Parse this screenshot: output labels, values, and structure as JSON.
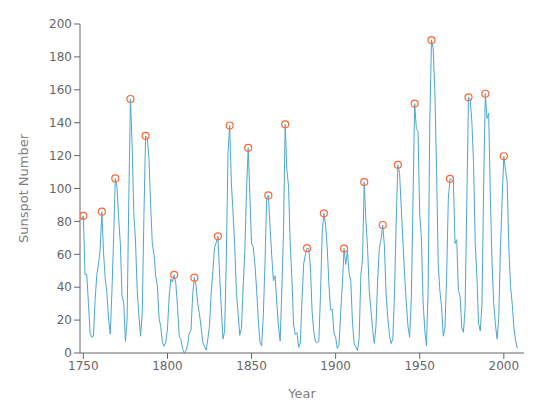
{
  "chart_data": {
    "type": "line",
    "xlabel": "Year",
    "ylabel": "Sunspot Number",
    "grid": false,
    "xlim": [
      1748,
      2012
    ],
    "ylim": [
      0,
      200
    ],
    "xticks": [
      1750,
      1800,
      1850,
      1900,
      1950,
      2000
    ],
    "yticks": [
      0,
      20,
      40,
      60,
      80,
      100,
      120,
      140,
      160,
      180,
      200
    ],
    "series": [
      {
        "type": "line",
        "color": "#4DA6D0",
        "x": [
          1749,
          1750,
          1751,
          1752,
          1753,
          1754,
          1755,
          1756,
          1757,
          1758,
          1759,
          1760,
          1761,
          1762,
          1763,
          1764,
          1765,
          1766,
          1767,
          1768,
          1769,
          1770,
          1771,
          1772,
          1773,
          1774,
          1775,
          1776,
          1777,
          1778,
          1779,
          1780,
          1781,
          1782,
          1783,
          1784,
          1785,
          1786,
          1787,
          1788,
          1789,
          1790,
          1791,
          1792,
          1793,
          1794,
          1795,
          1796,
          1797,
          1798,
          1799,
          1800,
          1801,
          1802,
          1803,
          1804,
          1805,
          1806,
          1807,
          1808,
          1809,
          1810,
          1811,
          1812,
          1813,
          1814,
          1815,
          1816,
          1817,
          1818,
          1819,
          1820,
          1821,
          1822,
          1823,
          1824,
          1825,
          1826,
          1827,
          1828,
          1829,
          1830,
          1831,
          1832,
          1833,
          1834,
          1835,
          1836,
          1837,
          1838,
          1839,
          1840,
          1841,
          1842,
          1843,
          1844,
          1845,
          1846,
          1847,
          1848,
          1849,
          1850,
          1851,
          1852,
          1853,
          1854,
          1855,
          1856,
          1857,
          1858,
          1859,
          1860,
          1861,
          1862,
          1863,
          1864,
          1865,
          1866,
          1867,
          1868,
          1869,
          1870,
          1871,
          1872,
          1873,
          1874,
          1875,
          1876,
          1877,
          1878,
          1879,
          1880,
          1881,
          1882,
          1883,
          1884,
          1885,
          1886,
          1887,
          1888,
          1889,
          1890,
          1891,
          1892,
          1893,
          1894,
          1895,
          1896,
          1897,
          1898,
          1899,
          1900,
          1901,
          1902,
          1903,
          1904,
          1905,
          1906,
          1907,
          1908,
          1909,
          1910,
          1911,
          1912,
          1913,
          1914,
          1915,
          1916,
          1917,
          1918,
          1919,
          1920,
          1921,
          1922,
          1923,
          1924,
          1925,
          1926,
          1927,
          1928,
          1929,
          1930,
          1931,
          1932,
          1933,
          1934,
          1935,
          1936,
          1937,
          1938,
          1939,
          1940,
          1941,
          1942,
          1943,
          1944,
          1945,
          1946,
          1947,
          1948,
          1949,
          1950,
          1951,
          1952,
          1953,
          1954,
          1955,
          1956,
          1957,
          1958,
          1959,
          1960,
          1961,
          1962,
          1963,
          1964,
          1965,
          1966,
          1967,
          1968,
          1969,
          1970,
          1971,
          1972,
          1973,
          1974,
          1975,
          1976,
          1977,
          1978,
          1979,
          1980,
          1981,
          1982,
          1983,
          1984,
          1985,
          1986,
          1987,
          1988,
          1989,
          1990,
          1991,
          1992,
          1993,
          1994,
          1995,
          1996,
          1997,
          1998,
          1999,
          2000,
          2001,
          2002,
          2003,
          2004,
          2005,
          2006,
          2007,
          2008
        ],
        "values": [
          80.9,
          83.4,
          47.7,
          47.8,
          30.7,
          12.2,
          9.6,
          10.2,
          32.4,
          47.6,
          54.0,
          62.9,
          85.9,
          61.2,
          45.1,
          36.4,
          20.9,
          11.4,
          37.8,
          69.8,
          106.1,
          100.8,
          81.6,
          66.5,
          34.8,
          30.6,
          7.0,
          19.8,
          92.5,
          154.4,
          125.9,
          84.8,
          68.1,
          38.5,
          22.8,
          10.2,
          24.1,
          82.9,
          132.0,
          130.9,
          118.1,
          89.9,
          66.6,
          60.0,
          46.9,
          41.0,
          21.3,
          16.0,
          6.4,
          4.1,
          6.8,
          14.5,
          34.0,
          45.0,
          43.1,
          47.5,
          42.2,
          28.1,
          10.1,
          8.1,
          2.5,
          0.0,
          1.4,
          5.0,
          12.2,
          13.9,
          35.4,
          45.8,
          41.1,
          30.1,
          23.9,
          15.6,
          6.6,
          4.0,
          1.8,
          8.5,
          16.6,
          36.3,
          49.6,
          64.2,
          67.0,
          70.9,
          47.8,
          27.5,
          8.5,
          13.2,
          56.9,
          121.5,
          138.3,
          103.2,
          85.7,
          64.6,
          36.7,
          24.2,
          10.7,
          15.0,
          40.1,
          61.5,
          98.5,
          124.7,
          96.3,
          66.6,
          64.5,
          54.1,
          39.0,
          20.6,
          6.7,
          4.3,
          22.7,
          54.8,
          93.8,
          95.8,
          77.2,
          59.1,
          44.0,
          47.0,
          30.5,
          16.3,
          7.3,
          37.6,
          74.0,
          139.0,
          111.2,
          101.6,
          66.2,
          44.7,
          17.0,
          11.3,
          12.4,
          3.4,
          6.0,
          32.3,
          54.3,
          59.7,
          63.7,
          63.5,
          52.2,
          25.4,
          13.1,
          6.8,
          6.3,
          7.1,
          35.6,
          73.0,
          84.9,
          78.0,
          64.0,
          41.8,
          26.2,
          26.7,
          12.1,
          9.5,
          2.7,
          5.0,
          24.4,
          42.0,
          63.5,
          53.8,
          62.0,
          48.5,
          43.9,
          18.6,
          5.7,
          3.6,
          1.4,
          9.6,
          47.4,
          57.1,
          103.9,
          80.6,
          63.6,
          37.6,
          26.1,
          14.2,
          5.8,
          16.7,
          44.3,
          63.9,
          69.0,
          77.8,
          64.9,
          35.7,
          21.2,
          11.1,
          5.7,
          8.7,
          36.1,
          79.7,
          114.4,
          109.6,
          88.8,
          67.8,
          47.5,
          30.6,
          16.3,
          9.6,
          33.2,
          92.6,
          151.6,
          136.3,
          134.7,
          83.9,
          69.4,
          31.5,
          13.9,
          4.4,
          38.0,
          141.7,
          190.2,
          184.8,
          159.0,
          112.3,
          53.9,
          37.6,
          27.9,
          10.2,
          15.1,
          47.0,
          93.8,
          105.9,
          105.5,
          104.5,
          66.6,
          68.9,
          38.0,
          34.5,
          15.5,
          12.6,
          27.5,
          92.5,
          155.4,
          154.6,
          140.4,
          115.9,
          66.6,
          45.9,
          17.9,
          13.4,
          29.2,
          100.2,
          157.6,
          142.6,
          145.7,
          94.3,
          54.6,
          29.9,
          17.5,
          8.6,
          21.5,
          64.3,
          93.3,
          119.6,
          111.0,
          104.0,
          63.7,
          40.4,
          29.8,
          15.2,
          7.5,
          2.9
        ]
      },
      {
        "type": "scatter",
        "marker": "circle",
        "color": "#FF6633",
        "x": [
          1750,
          1761,
          1769,
          1778,
          1787,
          1804,
          1816,
          1830,
          1837,
          1848,
          1860,
          1870,
          1883,
          1893,
          1905,
          1917,
          1928,
          1937,
          1947,
          1957,
          1968,
          1979,
          1989,
          2000
        ],
        "values": [
          83.4,
          85.9,
          106.1,
          154.4,
          132.0,
          47.5,
          45.8,
          70.9,
          138.3,
          124.7,
          95.8,
          139.0,
          63.7,
          84.9,
          63.5,
          103.9,
          77.8,
          114.4,
          151.6,
          190.2,
          105.9,
          155.4,
          157.6,
          119.6
        ]
      }
    ]
  }
}
